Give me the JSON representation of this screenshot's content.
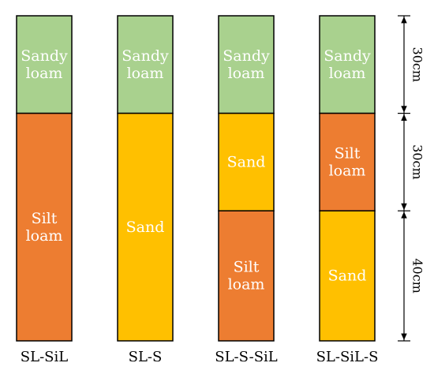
{
  "colors": {
    "sandy_loam": "#a9d18e",
    "sand": "#ffc000",
    "silt_loam": "#ed7d31",
    "border": "#000000"
  },
  "columns": [
    {
      "label": "SL-SiL",
      "layers": [
        {
          "soil": "sandy_loam",
          "depth_cm": 30,
          "lines": [
            "Sandy",
            "loam"
          ]
        },
        {
          "soil": "silt_loam",
          "depth_cm": 70,
          "lines": [
            "Silt",
            "loam"
          ]
        }
      ]
    },
    {
      "label": "SL-S",
      "layers": [
        {
          "soil": "sandy_loam",
          "depth_cm": 30,
          "lines": [
            "Sandy",
            "loam"
          ]
        },
        {
          "soil": "sand",
          "depth_cm": 70,
          "lines": [
            "Sand"
          ]
        }
      ]
    },
    {
      "label": "SL-S-SiL",
      "layers": [
        {
          "soil": "sandy_loam",
          "depth_cm": 30,
          "lines": [
            "Sandy",
            "loam"
          ]
        },
        {
          "soil": "sand",
          "depth_cm": 30,
          "lines": [
            "Sand"
          ]
        },
        {
          "soil": "silt_loam",
          "depth_cm": 40,
          "lines": [
            "Silt",
            "loam"
          ]
        }
      ]
    },
    {
      "label": "SL-SiL-S",
      "layers": [
        {
          "soil": "sandy_loam",
          "depth_cm": 30,
          "lines": [
            "Sandy",
            "loam"
          ]
        },
        {
          "soil": "silt_loam",
          "depth_cm": 30,
          "lines": [
            "Silt",
            "loam"
          ]
        },
        {
          "soil": "sand",
          "depth_cm": 40,
          "lines": [
            "Sand"
          ]
        }
      ]
    }
  ],
  "dimensions": [
    {
      "depth_cm": 30,
      "label": "30cm"
    },
    {
      "depth_cm": 30,
      "label": "30cm"
    },
    {
      "depth_cm": 40,
      "label": "40cm"
    }
  ]
}
